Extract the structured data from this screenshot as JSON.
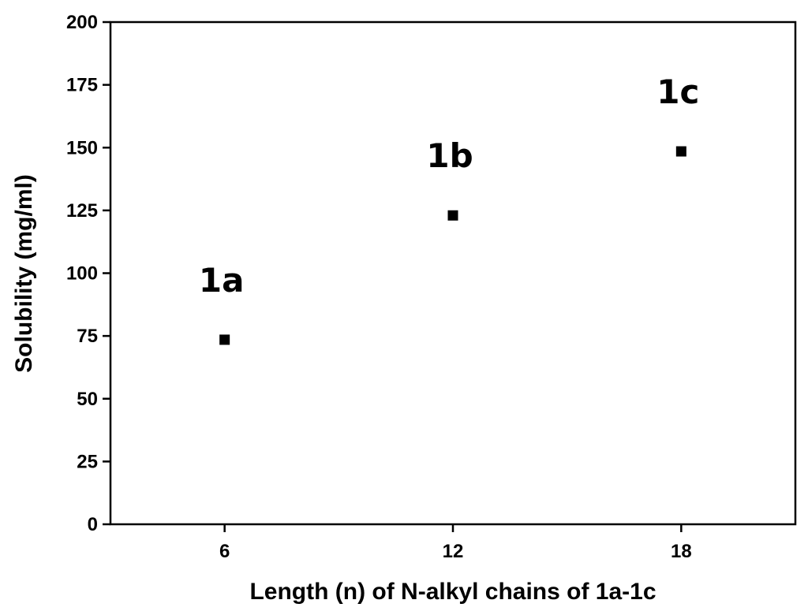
{
  "chart_data": {
    "type": "scatter",
    "title": "",
    "xlabel": "Length (n) of N-alkyl chains of 1a-1c",
    "ylabel": "Solubility  (mg/ml)",
    "x_ticks": [
      6,
      12,
      18
    ],
    "y_ticks": [
      0,
      25,
      50,
      75,
      100,
      125,
      150,
      175,
      200
    ],
    "xlim": [
      3,
      21
    ],
    "ylim": [
      0,
      200
    ],
    "grid": false,
    "legend": "none",
    "marker": "square",
    "marker_color": "#000000",
    "points": [
      {
        "label": "1a",
        "x": 6,
        "y": 73.5
      },
      {
        "label": "1b",
        "x": 12,
        "y": 123
      },
      {
        "label": "1c",
        "x": 18,
        "y": 148.5
      }
    ]
  }
}
